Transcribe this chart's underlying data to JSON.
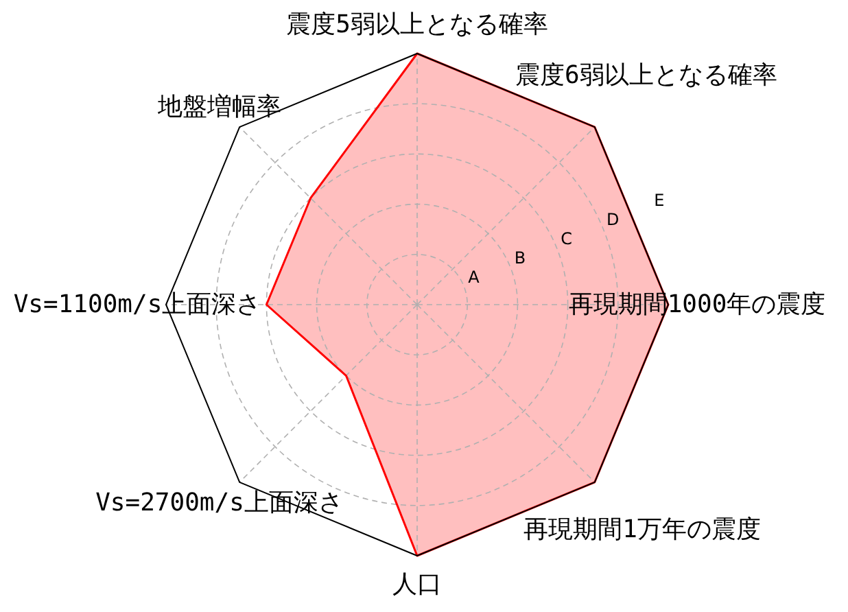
{
  "chart_data": {
    "type": "radar",
    "categories": [
      "震度5弱以上となる確率",
      "震度6弱以上となる確率",
      "再現期間1000年の震度",
      "再現期間1万年の震度",
      "人口",
      "Vs=2700m/s上面深さ",
      "Vs=1100m/s上面深さ",
      "地盤増幅率"
    ],
    "series": [
      {
        "color": "#ff0000",
        "values": [
          5,
          5,
          5,
          5,
          5,
          2,
          3,
          3
        ]
      }
    ],
    "ylim": [
      0,
      5
    ],
    "yticks": [
      {
        "value": 1,
        "label": "A"
      },
      {
        "value": 2,
        "label": "B"
      },
      {
        "value": 3,
        "label": "C"
      },
      {
        "value": 4,
        "label": "D"
      },
      {
        "value": 5,
        "label": "E"
      }
    ],
    "grid": true
  }
}
